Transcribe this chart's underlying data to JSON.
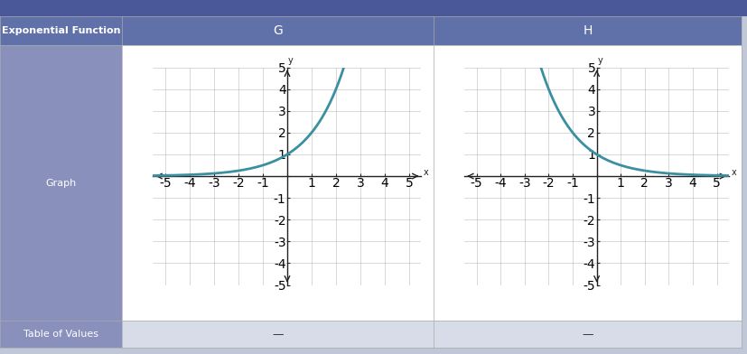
{
  "title_col0": "Exponential Function",
  "title_col1": "G",
  "title_col2": "H",
  "row1_label": "Graph",
  "row2_label": "Table of Values",
  "xlim": [
    -5.5,
    5.5
  ],
  "ylim": [
    -5,
    5
  ],
  "xticks": [
    -5,
    -4,
    -3,
    -2,
    -1,
    0,
    1,
    2,
    3,
    4,
    5
  ],
  "yticks": [
    -5,
    -4,
    -3,
    -2,
    -1,
    0,
    1,
    2,
    3,
    4,
    5
  ],
  "curve_color": "#3a8fa0",
  "curve_linewidth": 2.0,
  "header_bg": "#6070a8",
  "header_text_color": "#ffffff",
  "row_label_bg": "#8890bb",
  "row_label_text_color": "#ffffff",
  "table_bg": "#d8dce8",
  "graph_bg": "#ffffff",
  "grid_color": "#aaaaaa",
  "axis_color": "#222222",
  "font_size_header": 8,
  "font_size_labels": 7,
  "font_size_tick": 6,
  "dash_text": "—",
  "outer_bg": "#c0c8d8"
}
